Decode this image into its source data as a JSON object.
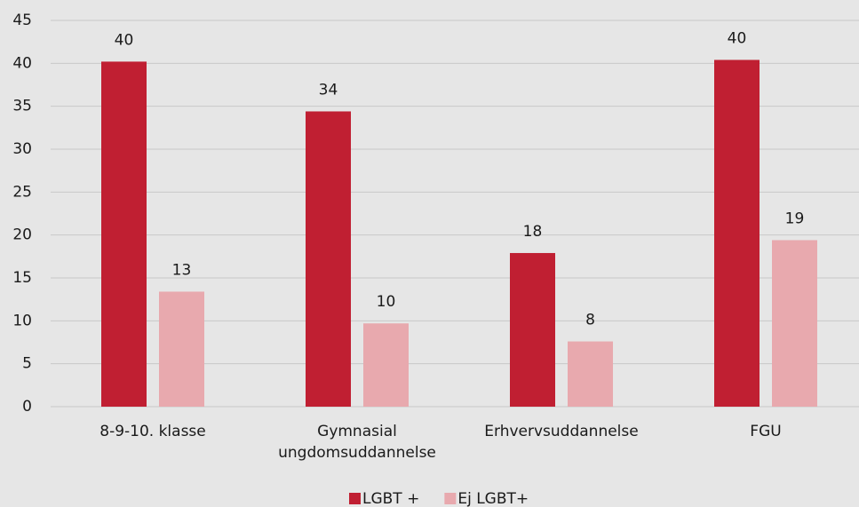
{
  "chart_data": {
    "type": "bar",
    "categories": [
      "8-9-10. klasse",
      "Gymnasial ungdomsuddannelse",
      "Erhvervsuddannelse",
      "FGU"
    ],
    "series": [
      {
        "name": "LGBT +",
        "color": "#c01f32",
        "values": [
          40.2,
          34.4,
          17.9,
          40.4
        ],
        "value_labels": [
          "40",
          "34",
          "18",
          "40"
        ]
      },
      {
        "name": "Ej LGBT+",
        "color": "#e8a9ae",
        "values": [
          13.4,
          9.7,
          7.6,
          19.4
        ],
        "value_labels": [
          "13",
          "10",
          "8",
          "19"
        ]
      }
    ],
    "ylim": [
      0,
      45
    ],
    "yticks": [
      0,
      5,
      10,
      15,
      20,
      25,
      30,
      35,
      40,
      45
    ],
    "grid": true,
    "legend": "bottom"
  }
}
